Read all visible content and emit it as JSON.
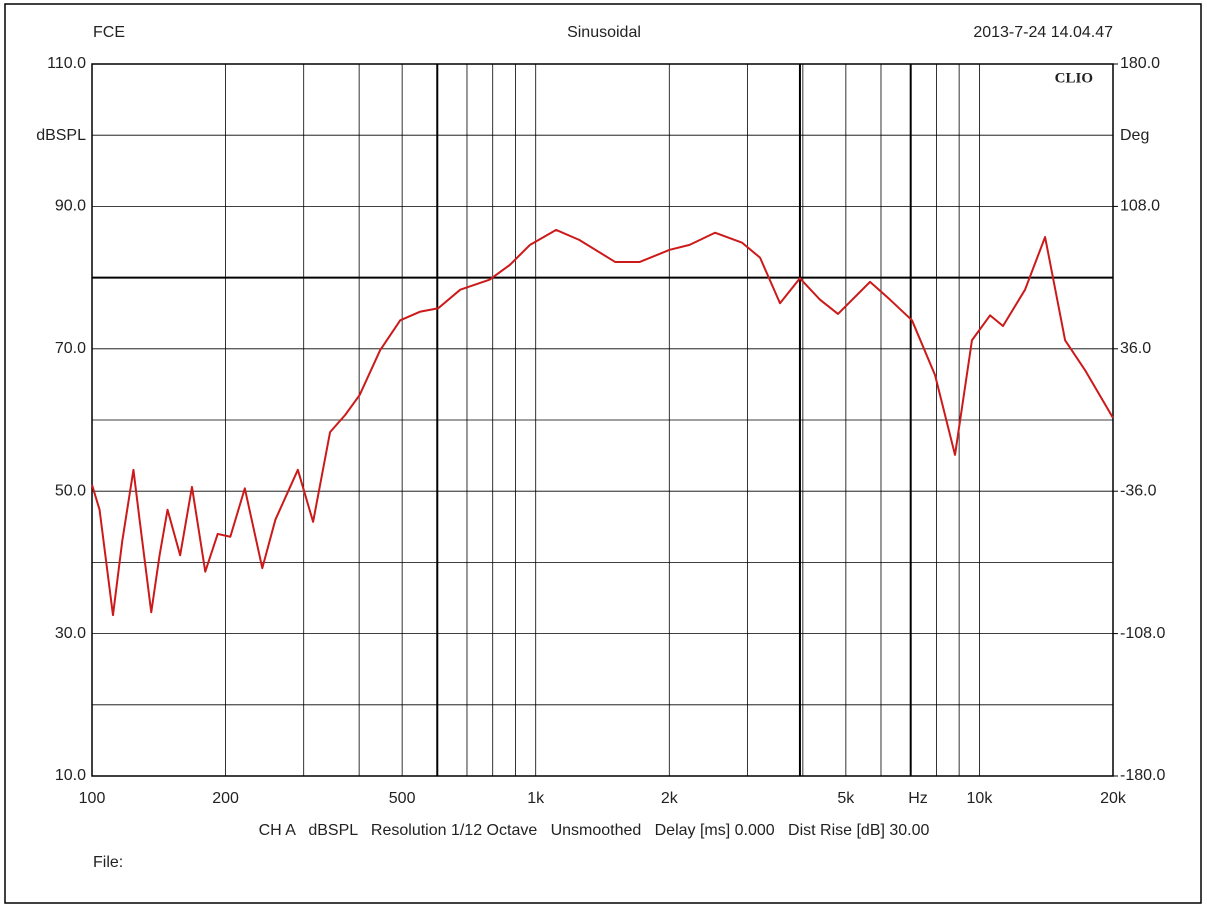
{
  "chart_data": {
    "type": "line",
    "header_left": "FCE",
    "title": "Sinusoidal",
    "timestamp": "2013-7-24 14.04.47",
    "brand": "CLIO",
    "ylabel": "dBSPL",
    "y2label": "Deg",
    "xunit": "Hz",
    "footer": "CH A   dBSPL   Resolution 1/12 Octave   Unsmoothed   Delay [ms] 0.000   Dist Rise [dB] 30.00",
    "file_label": "File:",
    "xscale": "log",
    "xlim": [
      100,
      20000
    ],
    "ylim": [
      10,
      110
    ],
    "y2lim": [
      -180,
      180
    ],
    "grid": true,
    "xticks": [
      100,
      200,
      500,
      {
        "value": 1000,
        "label": "1k"
      },
      {
        "value": 2000,
        "label": "2k"
      },
      {
        "value": 5000,
        "label": "5k"
      },
      {
        "value": 10000,
        "label": "10k"
      },
      {
        "value": 20000,
        "label": "20k"
      }
    ],
    "xminor": [
      300,
      400,
      600,
      700,
      800,
      900,
      3000,
      4000,
      6000,
      7000,
      8000,
      9000
    ],
    "yticks": [
      {
        "value": 10,
        "label": "10.0"
      },
      {
        "value": 30,
        "label": "30.0"
      },
      {
        "value": 50,
        "label": "50.0"
      },
      {
        "value": 70,
        "label": "70.0"
      },
      {
        "value": 90,
        "label": "90.0"
      },
      {
        "value": 110,
        "label": "110.0"
      }
    ],
    "yminor": [
      20,
      40,
      60,
      80,
      100
    ],
    "y2ticks": [
      {
        "value": -180,
        "label": "-180.0"
      },
      {
        "value": -108,
        "label": "-108.0"
      },
      {
        "value": -36,
        "label": "-36.0"
      },
      {
        "value": 36,
        "label": "36.0"
      },
      {
        "value": 108,
        "label": "108.0"
      },
      {
        "value": 180,
        "label": "180.0"
      }
    ],
    "highlight_x": [
      600,
      3940,
      7000
    ],
    "highlight_y": [
      80
    ],
    "x": [
      100,
      104,
      111.5,
      117,
      124,
      128,
      136,
      142,
      148,
      158,
      168,
      180,
      192,
      205,
      221,
      242,
      259,
      291,
      315,
      344,
      372,
      401,
      446,
      495,
      548,
      603,
      676,
      787,
      875,
      971,
      1112,
      1253,
      1510,
      1716,
      2004,
      2222,
      2535,
      2919,
      3203,
      3553,
      3940,
      4372,
      4800,
      5669,
      6288,
      7047,
      7943,
      8810,
      9620,
      10570,
      11300,
      12670,
      14060,
      15600,
      17300,
      20000
    ],
    "series": [
      {
        "color": "#cc1a1a",
        "values": [
          50.9,
          47.4,
          32.6,
          43,
          53,
          46,
          33,
          41,
          47.4,
          41,
          50.6,
          38.7,
          44,
          43.6,
          50.4,
          39.2,
          46,
          53,
          45.7,
          58.3,
          60.7,
          63.5,
          69.8,
          74,
          75.2,
          75.7,
          78.3,
          79.7,
          81.8,
          84.6,
          86.7,
          85.3,
          82.2,
          82.2,
          83.9,
          84.6,
          86.3,
          84.9,
          82.8,
          76.4,
          79.9,
          76.9,
          74.9,
          79.4,
          76.9,
          74,
          66.3,
          55.1,
          71.2,
          74.7,
          73.2,
          78.3,
          85.7,
          71.2,
          67,
          60.3
        ]
      }
    ]
  }
}
